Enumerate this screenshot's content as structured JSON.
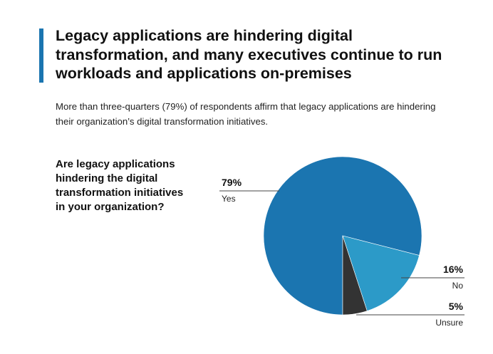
{
  "header": {
    "title_lines": [
      "Legacy applications are hindering digital",
      "transformation, and many executives continue to run",
      "workloads and applications on-premises"
    ],
    "subtitle_lines": [
      "More than three-quarters (79%) of respondents affirm that legacy applications are hindering",
      "their organization’s digital transformation initiatives."
    ],
    "accent_color": "#1b75b0"
  },
  "chart_data": {
    "type": "pie",
    "title": "",
    "question_lines": [
      "Are legacy applications",
      "hindering the digital",
      "transformation initiatives",
      "in your organization?"
    ],
    "slices": [
      {
        "label": "Yes",
        "value": 79,
        "value_label": "79%",
        "color": "#1b75b0"
      },
      {
        "label": "No",
        "value": 16,
        "value_label": "16%",
        "color": "#2c9ac8"
      },
      {
        "label": "Unsure",
        "value": 5,
        "value_label": "5%",
        "color": "#333333"
      }
    ]
  }
}
